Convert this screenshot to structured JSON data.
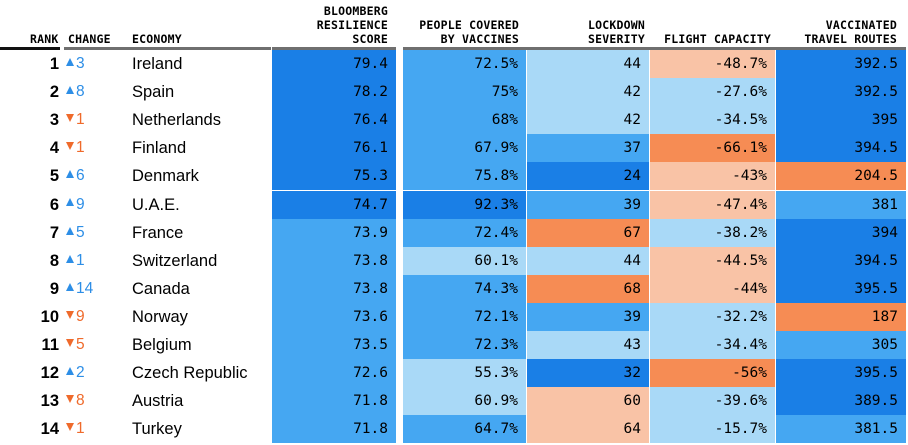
{
  "headers": {
    "rank": "RANK",
    "change": "CHANGE",
    "economy": "ECONOMY",
    "score": "BLOOMBERG\nRESILIENCE\nSCORE",
    "vaccines": "PEOPLE COVERED\nBY VACCINES",
    "lockdown": "LOCKDOWN\nSEVERITY",
    "flight": "FLIGHT CAPACITY",
    "routes": "VACCINATED\nTRAVEL ROUTES"
  },
  "colors": {
    "dark_blue": "#1a7fe6",
    "mid_blue": "#45a7f2",
    "light_blue": "#a9d9f7",
    "light_orange": "#f9c3a6",
    "orange": "#f68c54",
    "up_arrow": "#2d8ee6",
    "down_arrow": "#ef6a2b"
  },
  "chart_data": {
    "type": "table",
    "columns": [
      "Rank",
      "Change",
      "Economy",
      "Bloomberg Resilience Score",
      "People Covered by Vaccines",
      "Lockdown Severity",
      "Flight Capacity",
      "Vaccinated Travel Routes"
    ],
    "rows": [
      {
        "rank": "1",
        "change_dir": "up",
        "change": "3",
        "economy": "Ireland",
        "score": "79.4",
        "vaccines": "72.5%",
        "lockdown": "44",
        "flight": "-48.7%",
        "routes": "392.5",
        "tiers": {
          "score": "dark_blue",
          "vaccines": "mid_blue",
          "lockdown": "light_blue",
          "flight": "light_orange",
          "routes": "dark_blue"
        }
      },
      {
        "rank": "2",
        "change_dir": "up",
        "change": "8",
        "economy": "Spain",
        "score": "78.2",
        "vaccines": "75%",
        "lockdown": "42",
        "flight": "-27.6%",
        "routes": "392.5",
        "tiers": {
          "score": "dark_blue",
          "vaccines": "mid_blue",
          "lockdown": "light_blue",
          "flight": "light_blue",
          "routes": "dark_blue"
        }
      },
      {
        "rank": "3",
        "change_dir": "down",
        "change": "1",
        "economy": "Netherlands",
        "score": "76.4",
        "vaccines": "68%",
        "lockdown": "42",
        "flight": "-34.5%",
        "routes": "395",
        "tiers": {
          "score": "dark_blue",
          "vaccines": "mid_blue",
          "lockdown": "light_blue",
          "flight": "light_blue",
          "routes": "dark_blue"
        }
      },
      {
        "rank": "4",
        "change_dir": "down",
        "change": "1",
        "economy": "Finland",
        "score": "76.1",
        "vaccines": "67.9%",
        "lockdown": "37",
        "flight": "-66.1%",
        "routes": "394.5",
        "tiers": {
          "score": "dark_blue",
          "vaccines": "mid_blue",
          "lockdown": "mid_blue",
          "flight": "orange",
          "routes": "dark_blue"
        }
      },
      {
        "rank": "5",
        "change_dir": "up",
        "change": "6",
        "economy": "Denmark",
        "score": "75.3",
        "vaccines": "75.8%",
        "lockdown": "24",
        "flight": "-43%",
        "routes": "204.5",
        "tiers": {
          "score": "dark_blue",
          "vaccines": "mid_blue",
          "lockdown": "dark_blue",
          "flight": "light_orange",
          "routes": "orange"
        }
      },
      {
        "rank": "6",
        "change_dir": "up",
        "change": "9",
        "economy": "U.A.E.",
        "score": "74.7",
        "vaccines": "92.3%",
        "lockdown": "39",
        "flight": "-47.4%",
        "routes": "381",
        "tiers": {
          "score": "dark_blue",
          "vaccines": "dark_blue",
          "lockdown": "mid_blue",
          "flight": "light_orange",
          "routes": "mid_blue"
        }
      },
      {
        "rank": "7",
        "change_dir": "up",
        "change": "5",
        "economy": "France",
        "score": "73.9",
        "vaccines": "72.4%",
        "lockdown": "67",
        "flight": "-38.2%",
        "routes": "394",
        "tiers": {
          "score": "mid_blue",
          "vaccines": "mid_blue",
          "lockdown": "orange",
          "flight": "light_blue",
          "routes": "dark_blue"
        }
      },
      {
        "rank": "8",
        "change_dir": "up",
        "change": "1",
        "economy": "Switzerland",
        "score": "73.8",
        "vaccines": "60.1%",
        "lockdown": "44",
        "flight": "-44.5%",
        "routes": "394.5",
        "tiers": {
          "score": "mid_blue",
          "vaccines": "light_blue",
          "lockdown": "light_blue",
          "flight": "light_orange",
          "routes": "dark_blue"
        }
      },
      {
        "rank": "9",
        "change_dir": "up",
        "change": "14",
        "economy": "Canada",
        "score": "73.8",
        "vaccines": "74.3%",
        "lockdown": "68",
        "flight": "-44%",
        "routes": "395.5",
        "tiers": {
          "score": "mid_blue",
          "vaccines": "mid_blue",
          "lockdown": "orange",
          "flight": "light_orange",
          "routes": "dark_blue"
        }
      },
      {
        "rank": "10",
        "change_dir": "down",
        "change": "9",
        "economy": "Norway",
        "score": "73.6",
        "vaccines": "72.1%",
        "lockdown": "39",
        "flight": "-32.2%",
        "routes": "187",
        "tiers": {
          "score": "mid_blue",
          "vaccines": "mid_blue",
          "lockdown": "mid_blue",
          "flight": "light_blue",
          "routes": "orange"
        }
      },
      {
        "rank": "11",
        "change_dir": "down",
        "change": "5",
        "economy": "Belgium",
        "score": "73.5",
        "vaccines": "72.3%",
        "lockdown": "43",
        "flight": "-34.4%",
        "routes": "305",
        "tiers": {
          "score": "mid_blue",
          "vaccines": "mid_blue",
          "lockdown": "light_blue",
          "flight": "light_blue",
          "routes": "mid_blue"
        }
      },
      {
        "rank": "12",
        "change_dir": "up",
        "change": "2",
        "economy": "Czech Republic",
        "score": "72.6",
        "vaccines": "55.3%",
        "lockdown": "32",
        "flight": "-56%",
        "routes": "395.5",
        "tiers": {
          "score": "mid_blue",
          "vaccines": "light_blue",
          "lockdown": "dark_blue",
          "flight": "orange",
          "routes": "dark_blue"
        }
      },
      {
        "rank": "13",
        "change_dir": "down",
        "change": "8",
        "economy": "Austria",
        "score": "71.8",
        "vaccines": "60.9%",
        "lockdown": "60",
        "flight": "-39.6%",
        "routes": "389.5",
        "tiers": {
          "score": "mid_blue",
          "vaccines": "light_blue",
          "lockdown": "light_orange",
          "flight": "light_blue",
          "routes": "dark_blue"
        }
      },
      {
        "rank": "14",
        "change_dir": "down",
        "change": "1",
        "economy": "Turkey",
        "score": "71.8",
        "vaccines": "64.7%",
        "lockdown": "64",
        "flight": "-15.7%",
        "routes": "381.5",
        "tiers": {
          "score": "mid_blue",
          "vaccines": "mid_blue",
          "lockdown": "light_orange",
          "flight": "light_blue",
          "routes": "mid_blue"
        }
      }
    ]
  }
}
